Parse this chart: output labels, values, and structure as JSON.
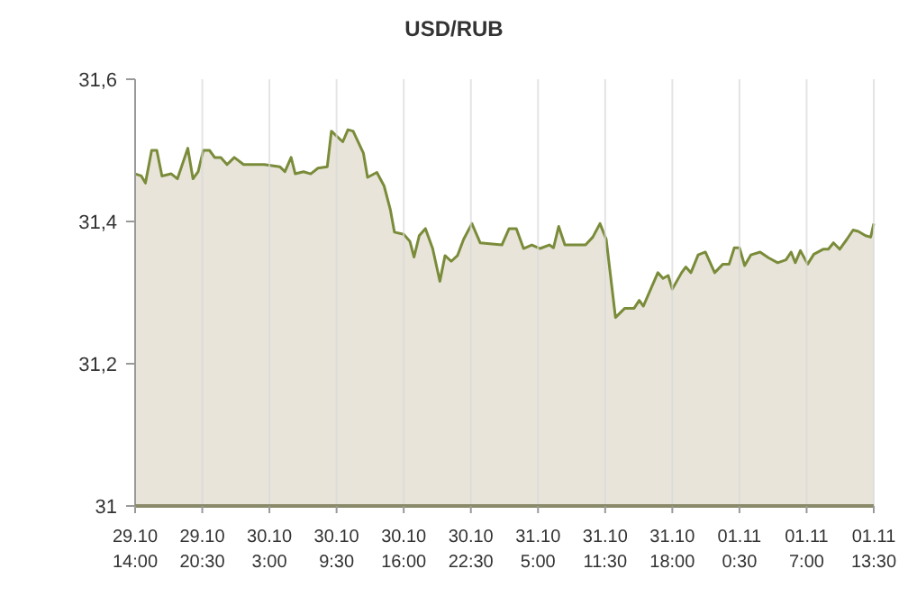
{
  "chart_data": {
    "type": "area",
    "title": "USD/RUB",
    "grid": "x",
    "color": "#7a8c3a",
    "ylim": [
      31,
      31.6
    ],
    "yticks": [
      {
        "value": 31,
        "label": "31"
      },
      {
        "value": 31.2,
        "label": "31,2"
      },
      {
        "value": 31.4,
        "label": "31,4"
      },
      {
        "value": 31.6,
        "label": "31,6"
      }
    ],
    "xlim": [
      "--10-29T14:00",
      "--11-01T13:30"
    ],
    "xticks": [
      {
        "value": "--10-29T14:00",
        "label": "29.10\n14:00"
      },
      {
        "value": "--10-29T20:30",
        "label": "29.10\n20:30"
      },
      {
        "value": "--10-30T03:00",
        "label": "30.10\n3:00"
      },
      {
        "value": "--10-30T09:30",
        "label": "30.10\n9:30"
      },
      {
        "value": "--10-30T16:00",
        "label": "30.10\n16:00"
      },
      {
        "value": "--10-30T22:30",
        "label": "30.10\n22:30"
      },
      {
        "value": "--10-31T05:00",
        "label": "31.10\n5:00"
      },
      {
        "value": "--10-31T11:30",
        "label": "31.10\n11:30"
      },
      {
        "value": "--10-31T18:00",
        "label": "31.10\n18:00"
      },
      {
        "value": "--11-01T00:30",
        "label": "01.11\n0:30"
      },
      {
        "value": "--11-01T07:00",
        "label": "01.11\n7:00"
      },
      {
        "value": "--11-01T13:30",
        "label": "01.11\n13:30"
      }
    ],
    "x": [
      "--10-29T14:00",
      "--10-29T14:36",
      "--10-29T15:00",
      "--10-29T15:36",
      "--10-29T16:06",
      "--10-29T16:36",
      "--10-29T17:30",
      "--10-29T18:06",
      "--10-29T19:06",
      "--10-29T19:36",
      "--10-29T20:06",
      "--10-29T20:36",
      "--10-29T21:12",
      "--10-29T21:42",
      "--10-29T22:18",
      "--10-29T22:54",
      "--10-29T23:36",
      "--10-30T00:30",
      "--10-30T01:18",
      "--10-30T02:30",
      "--10-30T04:00",
      "--10-30T04:30",
      "--10-30T05:06",
      "--10-30T05:30",
      "--10-30T06:18",
      "--10-30T07:00",
      "--10-30T07:42",
      "--10-30T08:36",
      "--10-30T09:00",
      "--10-30T09:30",
      "--10-30T10:06",
      "--10-30T10:36",
      "--10-30T11:06",
      "--10-30T12:06",
      "--10-30T12:30",
      "--10-30T13:24",
      "--10-30T14:06",
      "--10-30T14:42",
      "--10-30T15:06",
      "--10-30T16:00",
      "--10-30T16:36",
      "--10-30T17:00",
      "--10-30T17:30",
      "--10-30T18:06",
      "--10-30T18:48",
      "--10-30T19:30",
      "--10-30T20:00",
      "--10-30T20:36",
      "--10-30T21:12",
      "--10-30T21:48",
      "--10-30T22:36",
      "--10-30T23:24",
      "--10-31T01:30",
      "--10-31T02:12",
      "--10-31T02:54",
      "--10-31T03:36",
      "--10-31T04:24",
      "--10-31T05:12",
      "--10-31T06:06",
      "--10-31T06:30",
      "--10-31T07:00",
      "--10-31T07:36",
      "--10-31T09:36",
      "--10-31T10:18",
      "--10-31T11:00",
      "--10-31T11:36",
      "--10-31T12:30",
      "--10-31T13:24",
      "--10-31T14:18",
      "--10-31T14:48",
      "--10-31T15:12",
      "--10-31T15:42",
      "--10-31T16:36",
      "--10-31T17:06",
      "--10-31T17:36",
      "--10-31T18:00",
      "--10-31T18:54",
      "--10-31T19:18",
      "--10-31T19:48",
      "--10-31T20:30",
      "--10-31T21:12",
      "--10-31T22:06",
      "--10-31T22:54",
      "--10-31T23:30",
      "--11-01T00:00",
      "--11-01T00:30",
      "--11-01T01:00",
      "--11-01T01:36",
      "--11-01T02:30",
      "--11-01T03:18",
      "--11-01T04:12",
      "--11-01T05:00",
      "--11-01T05:30",
      "--11-01T05:54",
      "--11-01T06:24",
      "--11-01T07:06",
      "--11-01T07:42",
      "--11-01T08:36",
      "--11-01T09:06",
      "--11-01T09:36",
      "--11-01T10:12",
      "--11-01T10:54",
      "--11-01T11:30",
      "--11-01T12:00",
      "--11-01T12:42",
      "--11-01T13:12",
      "--11-01T13:30"
    ],
    "values": [
      31.467,
      31.464,
      31.454,
      31.5,
      31.5,
      31.464,
      31.467,
      31.46,
      31.503,
      31.46,
      31.47,
      31.5,
      31.5,
      31.49,
      31.49,
      31.48,
      31.49,
      31.48,
      31.48,
      31.48,
      31.477,
      31.47,
      31.49,
      31.467,
      31.47,
      31.467,
      31.475,
      31.477,
      31.527,
      31.52,
      31.512,
      31.529,
      31.527,
      31.496,
      31.462,
      31.469,
      31.45,
      31.417,
      31.385,
      31.382,
      31.372,
      31.35,
      31.38,
      31.39,
      31.362,
      31.316,
      31.352,
      31.344,
      31.352,
      31.375,
      31.397,
      31.37,
      31.367,
      31.39,
      31.39,
      31.362,
      31.367,
      31.362,
      31.367,
      31.363,
      31.393,
      31.367,
      31.367,
      31.378,
      31.397,
      31.375,
      31.265,
      31.278,
      31.278,
      31.289,
      31.281,
      31.298,
      31.328,
      31.32,
      31.324,
      31.305,
      31.328,
      31.336,
      31.328,
      31.353,
      31.357,
      31.328,
      31.34,
      31.34,
      31.363,
      31.363,
      31.338,
      31.353,
      31.357,
      31.349,
      31.342,
      31.346,
      31.357,
      31.342,
      31.359,
      31.34,
      31.354,
      31.361,
      31.361,
      31.37,
      31.361,
      31.375,
      31.388,
      31.386,
      31.38,
      31.378,
      31.397
    ]
  }
}
